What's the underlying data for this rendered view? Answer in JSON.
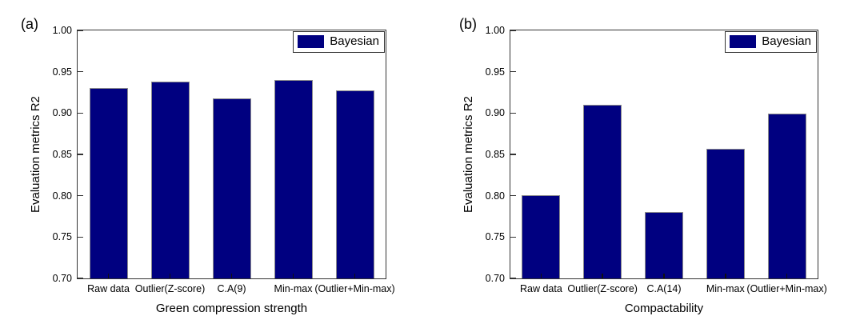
{
  "figure": {
    "background": "#ffffff",
    "text_color": "#000000",
    "frame_color": "#333333"
  },
  "chart_data": [
    {
      "type": "bar",
      "panel_label": "(a)",
      "categories": [
        "Raw data",
        "Outlier(Z-score)",
        "C.A(9)",
        "Min-max",
        "(Outlier+Min-max)"
      ],
      "values": [
        0.93,
        0.938,
        0.918,
        0.94,
        0.927
      ],
      "title": "",
      "xlabel": "Green compression strength",
      "ylabel": "Evaluation metrics R2",
      "ylim": [
        0.7,
        1.0
      ],
      "ytick_step": 0.05,
      "ytick_labels": [
        "0.70",
        "0.75",
        "0.80",
        "0.85",
        "0.90",
        "0.95",
        "1.00"
      ],
      "legend_entries": [
        "Bayesian"
      ],
      "legend_position": "top-right",
      "bar_color": "#000080",
      "bar_border_color": "#8c8c8c",
      "grid": false
    },
    {
      "type": "bar",
      "panel_label": "(b)",
      "categories": [
        "Raw data",
        "Outlier(Z-score)",
        "C.A(14)",
        "Min-max",
        "(Outlier+Min-max)"
      ],
      "values": [
        0.801,
        0.91,
        0.78,
        0.857,
        0.899
      ],
      "title": "",
      "xlabel": "Compactability",
      "ylabel": "Evaluation metrics R2",
      "ylim": [
        0.7,
        1.0
      ],
      "ytick_step": 0.05,
      "ytick_labels": [
        "0.70",
        "0.75",
        "0.80",
        "0.85",
        "0.90",
        "0.95",
        "1.00"
      ],
      "legend_entries": [
        "Bayesian"
      ],
      "legend_position": "top-right",
      "bar_color": "#000080",
      "bar_border_color": "#8c8c8c",
      "grid": false
    }
  ]
}
